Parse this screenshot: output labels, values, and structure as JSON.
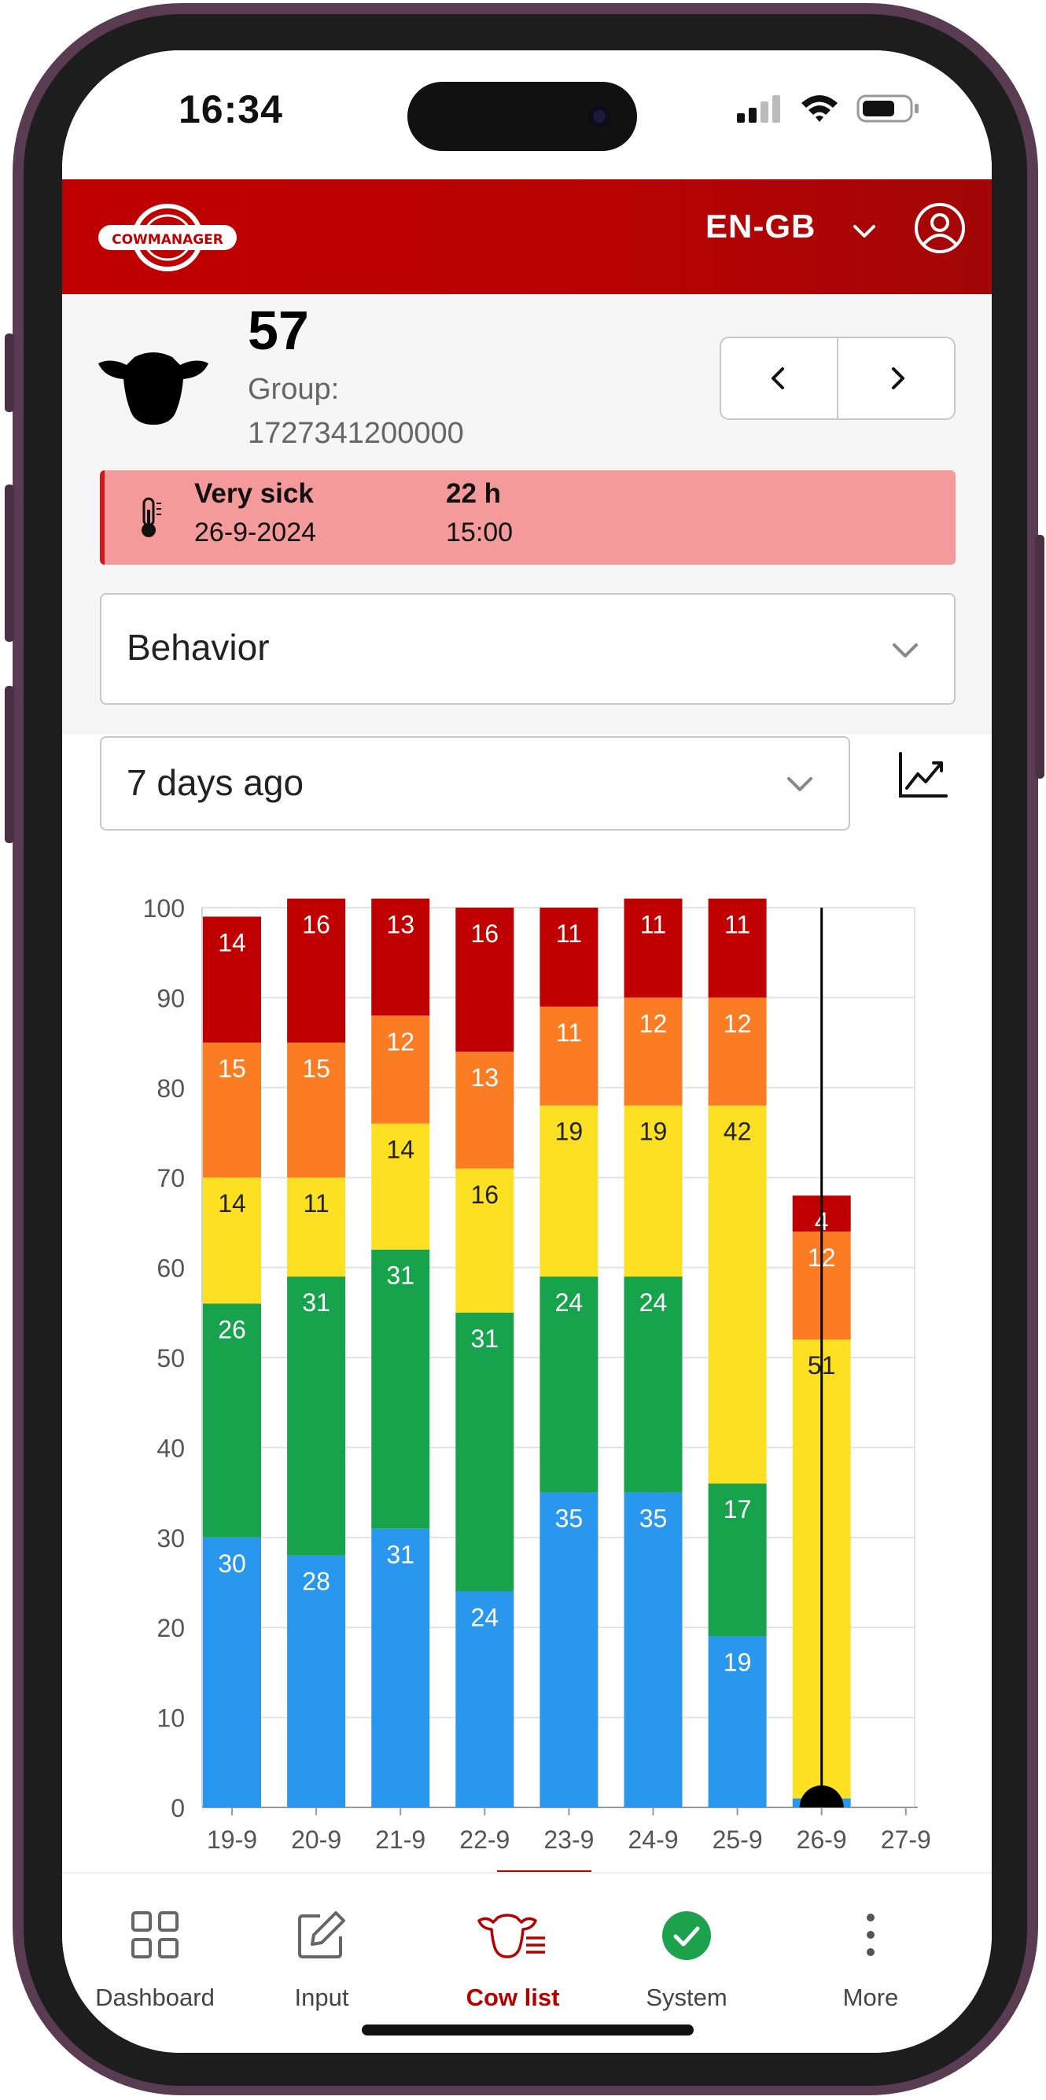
{
  "status_bar": {
    "time": "16:34"
  },
  "header": {
    "brand": "COWMANAGER",
    "language": "EN-GB"
  },
  "cow": {
    "id": "57",
    "group_label": "Group:",
    "group_value": "1727341200000"
  },
  "alert": {
    "status": "Very sick",
    "date": "26-9-2024",
    "duration": "22 h",
    "time": "15:00"
  },
  "category_select": {
    "value": "Behavior"
  },
  "range_select": {
    "value": "7 days ago"
  },
  "colors": {
    "brand_red": "#c00000",
    "alert_bg": "#f49a9a",
    "active": "#b60000"
  },
  "chart_data": {
    "type": "bar",
    "stacked": true,
    "categories": [
      "19-9",
      "20-9",
      "21-9",
      "22-9",
      "23-9",
      "24-9",
      "25-9",
      "26-9",
      "27-9"
    ],
    "y_ticks": [
      0,
      10,
      20,
      30,
      40,
      50,
      60,
      70,
      80,
      90,
      100
    ],
    "ylim": [
      0,
      100
    ],
    "grid": true,
    "current_marker": "26-9",
    "series": [
      {
        "color": "#2a97ee",
        "label_color": "#ffffff",
        "values": [
          30,
          28,
          31,
          24,
          35,
          35,
          19,
          1,
          null
        ]
      },
      {
        "color": "#17a34c",
        "label_color": "#ffffff",
        "values": [
          26,
          31,
          31,
          31,
          24,
          24,
          17,
          0,
          null
        ]
      },
      {
        "color": "#fde022",
        "label_color": "#222222",
        "values": [
          14,
          11,
          14,
          16,
          19,
          19,
          42,
          51,
          null
        ]
      },
      {
        "color": "#fb7c22",
        "label_color": "#ffffff",
        "values": [
          15,
          15,
          12,
          13,
          11,
          12,
          12,
          12,
          null
        ]
      },
      {
        "color": "#c00000",
        "label_color": "#ffffff",
        "values": [
          14,
          16,
          13,
          16,
          11,
          11,
          11,
          4,
          null
        ]
      }
    ]
  },
  "bottom_nav": {
    "items": [
      {
        "label": "Dashboard",
        "icon": "grid-icon"
      },
      {
        "label": "Input",
        "icon": "edit-icon"
      },
      {
        "label": "Cow list",
        "icon": "cow-list-icon"
      },
      {
        "label": "System",
        "icon": "check-circle-icon"
      },
      {
        "label": "More",
        "icon": "more-icon"
      }
    ],
    "active": "Cow list"
  }
}
